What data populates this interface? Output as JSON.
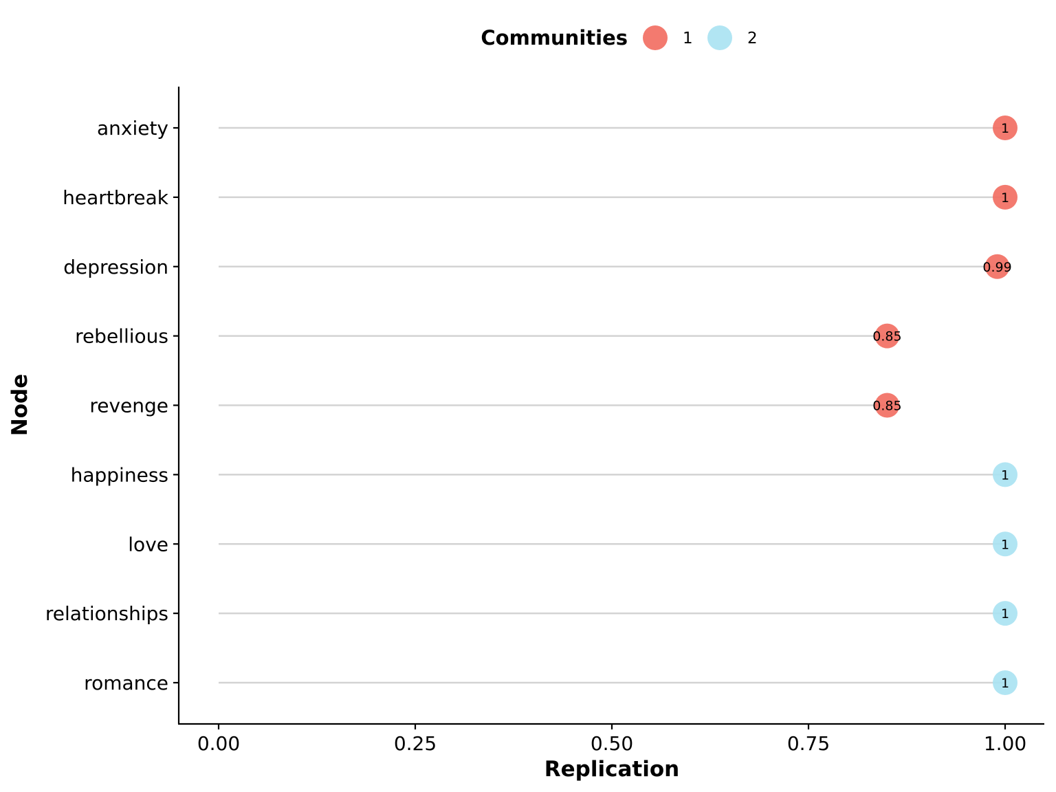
{
  "chart_data": {
    "type": "lollipop",
    "xlabel": "Replication",
    "ylabel": "Node",
    "xlim": [
      0,
      1
    ],
    "x_ticks": [
      "0.00",
      "0.25",
      "0.50",
      "0.75",
      "1.00"
    ],
    "x_tick_values": [
      0,
      0.25,
      0.5,
      0.75,
      1.0
    ],
    "legend": {
      "title": "Communities",
      "position": "top",
      "entries": [
        {
          "label": "1",
          "color": "#f26b5f"
        },
        {
          "label": "2",
          "color": "#a8e2f2"
        }
      ]
    },
    "points": [
      {
        "node": "anxiety",
        "value": 1.0,
        "label": "1",
        "community": "1"
      },
      {
        "node": "heartbreak",
        "value": 1.0,
        "label": "1",
        "community": "1"
      },
      {
        "node": "depression",
        "value": 0.99,
        "label": "0.99",
        "community": "1"
      },
      {
        "node": "rebellious",
        "value": 0.85,
        "label": "0.85",
        "community": "1"
      },
      {
        "node": "revenge",
        "value": 0.85,
        "label": "0.85",
        "community": "1"
      },
      {
        "node": "happiness",
        "value": 1.0,
        "label": "1",
        "community": "2"
      },
      {
        "node": "love",
        "value": 1.0,
        "label": "1",
        "community": "2"
      },
      {
        "node": "relationships",
        "value": 1.0,
        "label": "1",
        "community": "2"
      },
      {
        "node": "romance",
        "value": 1.0,
        "label": "1",
        "community": "2"
      }
    ],
    "grid": false
  }
}
